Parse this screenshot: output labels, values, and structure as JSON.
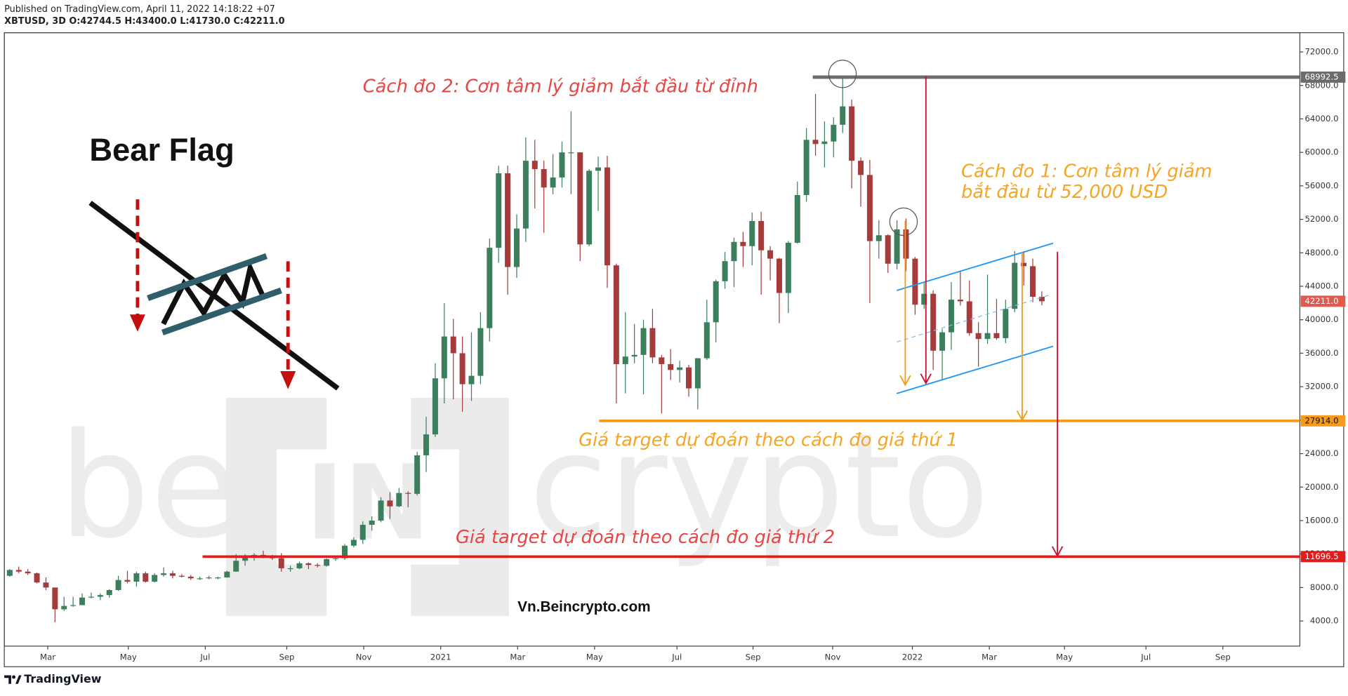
{
  "header": {
    "published": "Published on TradingView.com, April 11, 2022 14:18:22 +07",
    "symbol_line": "XBTUSD, 3D O:42744.5 H:43400.0 L:41730.0 C:42211.0"
  },
  "chart_data": {
    "type": "candlestick",
    "series": [
      {
        "name": "XBTUSD",
        "up_color": "#3b7f5c",
        "down_color": "#a63b3b",
        "last_price_label": "42211.0",
        "last_price_color": "#e05a4f",
        "ohlc": [
          [
            9400,
            10200,
            9300,
            10100
          ],
          [
            10100,
            10500,
            9700,
            9900
          ],
          [
            9900,
            10200,
            9500,
            9700
          ],
          [
            9700,
            9800,
            8500,
            8600
          ],
          [
            8600,
            9200,
            7700,
            8000
          ],
          [
            8000,
            8000,
            3850,
            5400
          ],
          [
            5400,
            6900,
            5200,
            5800
          ],
          [
            5800,
            6900,
            5700,
            5900
          ],
          [
            5900,
            7300,
            5900,
            6800
          ],
          [
            6800,
            7400,
            6700,
            6900
          ],
          [
            6900,
            7300,
            6500,
            7100
          ],
          [
            7100,
            7800,
            6800,
            7700
          ],
          [
            7700,
            9400,
            7600,
            8900
          ],
          [
            8900,
            10000,
            8500,
            8700
          ],
          [
            8700,
            9900,
            8100,
            9700
          ],
          [
            9700,
            9900,
            8600,
            8700
          ],
          [
            8700,
            9700,
            8600,
            9500
          ],
          [
            9500,
            10400,
            9300,
            9700
          ],
          [
            9700,
            10000,
            9100,
            9400
          ],
          [
            9400,
            9600,
            9200,
            9300
          ],
          [
            9300,
            9500,
            8900,
            9100
          ],
          [
            9100,
            9300,
            8900,
            9100
          ],
          [
            9100,
            9400,
            9000,
            9200
          ],
          [
            9200,
            9300,
            9000,
            9200
          ],
          [
            9200,
            10000,
            9200,
            9900
          ],
          [
            9900,
            12000,
            9900,
            11200
          ],
          [
            11200,
            12000,
            10600,
            11700
          ],
          [
            11700,
            12100,
            11200,
            11900
          ],
          [
            11900,
            12400,
            11500,
            11700
          ],
          [
            11700,
            11900,
            11300,
            11500
          ],
          [
            11500,
            12100,
            9900,
            10300
          ],
          [
            10300,
            10600,
            9900,
            10300
          ],
          [
            10300,
            11100,
            10200,
            10900
          ],
          [
            10900,
            11000,
            10200,
            10700
          ],
          [
            10700,
            10900,
            10400,
            10600
          ],
          [
            10600,
            11500,
            10500,
            11400
          ],
          [
            11400,
            11700,
            11200,
            11500
          ],
          [
            11500,
            13200,
            11300,
            13000
          ],
          [
            13000,
            14000,
            12800,
            13700
          ],
          [
            13700,
            15900,
            13200,
            15500
          ],
          [
            15500,
            16500,
            14800,
            16000
          ],
          [
            16000,
            18800,
            15800,
            18400
          ],
          [
            18400,
            19400,
            16200,
            17700
          ],
          [
            17700,
            19900,
            17600,
            19300
          ],
          [
            19300,
            19500,
            17600,
            19200
          ],
          [
            19200,
            24200,
            19000,
            23800
          ],
          [
            23800,
            28400,
            21800,
            26300
          ],
          [
            26300,
            34800,
            26000,
            33000
          ],
          [
            33000,
            42000,
            30000,
            38000
          ],
          [
            38000,
            40100,
            30500,
            36000
          ],
          [
            36000,
            38000,
            29000,
            32300
          ],
          [
            32300,
            38500,
            30300,
            33300
          ],
          [
            33300,
            40900,
            32300,
            39000
          ],
          [
            39000,
            49700,
            37400,
            48600
          ],
          [
            48600,
            58400,
            46800,
            57500
          ],
          [
            57500,
            58400,
            43000,
            46300
          ],
          [
            46300,
            52600,
            45000,
            50900
          ],
          [
            50900,
            61800,
            49300,
            59000
          ],
          [
            59000,
            61500,
            53300,
            58000
          ],
          [
            58000,
            59000,
            50400,
            55800
          ],
          [
            55800,
            59800,
            55000,
            57000
          ],
          [
            57000,
            61300,
            55800,
            60000
          ],
          [
            60000,
            64900,
            55000,
            60000
          ],
          [
            60000,
            60000,
            47000,
            49000
          ],
          [
            49000,
            58000,
            48800,
            57800
          ],
          [
            57800,
            59500,
            53000,
            58200
          ],
          [
            58200,
            59600,
            43800,
            46500
          ],
          [
            46500,
            46700,
            30000,
            34700
          ],
          [
            34700,
            40900,
            31200,
            35600
          ],
          [
            35600,
            39500,
            34800,
            35800
          ],
          [
            35800,
            40000,
            31100,
            39000
          ],
          [
            39000,
            41300,
            34800,
            35500
          ],
          [
            35500,
            35800,
            28800,
            34700
          ],
          [
            34700,
            36500,
            32800,
            34000
          ],
          [
            34000,
            35100,
            32500,
            34300
          ],
          [
            34300,
            34600,
            30800,
            31800
          ],
          [
            31800,
            35400,
            29300,
            35400
          ],
          [
            35400,
            42400,
            35200,
            39700
          ],
          [
            39700,
            44800,
            37300,
            44600
          ],
          [
            44600,
            48100,
            43700,
            47000
          ],
          [
            47000,
            49800,
            43900,
            49300
          ],
          [
            49300,
            50500,
            46300,
            48800
          ],
          [
            48800,
            52800,
            46500,
            51800
          ],
          [
            51800,
            52900,
            43000,
            48300
          ],
          [
            48300,
            48800,
            44700,
            47300
          ],
          [
            47300,
            47400,
            39600,
            43200
          ],
          [
            43200,
            49400,
            40800,
            49200
          ],
          [
            49200,
            56500,
            49100,
            54900
          ],
          [
            54900,
            62900,
            54100,
            61500
          ],
          [
            61500,
            67000,
            59600,
            61000
          ],
          [
            61000,
            63700,
            58200,
            61300
          ],
          [
            61300,
            64200,
            59400,
            63300
          ],
          [
            63300,
            68992.5,
            62300,
            65500
          ],
          [
            65500,
            66300,
            55700,
            59000
          ],
          [
            59000,
            59400,
            53500,
            57300
          ],
          [
            57300,
            59100,
            42000,
            49400
          ],
          [
            49400,
            51900,
            47300,
            50100
          ],
          [
            50100,
            50200,
            45600,
            46700
          ],
          [
            46700,
            51900,
            46000,
            50800
          ],
          [
            50800,
            52100,
            45800,
            47300
          ],
          [
            47300,
            47500,
            40600,
            41800
          ],
          [
            41800,
            44400,
            41300,
            43100
          ],
          [
            43100,
            43500,
            34000,
            36300
          ],
          [
            36300,
            38900,
            32900,
            38500
          ],
          [
            38500,
            44500,
            36400,
            42400
          ],
          [
            42400,
            45800,
            41700,
            42200
          ],
          [
            42200,
            44700,
            38100,
            38400
          ],
          [
            38400,
            39700,
            34400,
            37700
          ],
          [
            37700,
            45400,
            37100,
            38400
          ],
          [
            38400,
            42500,
            37600,
            37800
          ],
          [
            37800,
            42400,
            37200,
            41300
          ],
          [
            41300,
            48200,
            40900,
            46800
          ],
          [
            46800,
            48200,
            44100,
            46400
          ],
          [
            46400,
            47300,
            42100,
            42744.5
          ],
          [
            42744.5,
            43400,
            41730,
            42211
          ]
        ]
      }
    ],
    "xlim": [
      -0.6,
      142.5
    ],
    "xticks": [
      {
        "value": 4.2,
        "label": "Mar"
      },
      {
        "value": 13.1,
        "label": "May"
      },
      {
        "value": 21.6,
        "label": "Jul"
      },
      {
        "value": 30.6,
        "label": "Sep"
      },
      {
        "value": 39.1,
        "label": "Nov"
      },
      {
        "value": 47.6,
        "label": "2021"
      },
      {
        "value": 56.1,
        "label": "Mar"
      },
      {
        "value": 64.6,
        "label": "May"
      },
      {
        "value": 73.7,
        "label": "Jul"
      },
      {
        "value": 82.1,
        "label": "Sep"
      },
      {
        "value": 90.9,
        "label": "Nov"
      },
      {
        "value": 99.7,
        "label": "2022"
      },
      {
        "value": 108.2,
        "label": "Mar"
      },
      {
        "value": 116.5,
        "label": "May"
      },
      {
        "value": 125.5,
        "label": "Jul"
      },
      {
        "value": 134.0,
        "label": "Sep"
      }
    ],
    "ylim": [
      1000,
      74300
    ],
    "yticks": [
      {
        "value": 4000,
        "label": "4000.0"
      },
      {
        "value": 8000,
        "label": "8000.0"
      },
      {
        "value": 12000,
        "label": "12000.0"
      },
      {
        "value": 16000,
        "label": "16000.0"
      },
      {
        "value": 20000,
        "label": "20000.0"
      },
      {
        "value": 24000,
        "label": "24000.0"
      },
      {
        "value": 28000,
        "label": "28000.0"
      },
      {
        "value": 32000,
        "label": "32000.0"
      },
      {
        "value": 36000,
        "label": "36000.0"
      },
      {
        "value": 40000,
        "label": "40000.0"
      },
      {
        "value": 44000,
        "label": "44000.0"
      },
      {
        "value": 48000,
        "label": "48000.0"
      },
      {
        "value": 52000,
        "label": "52000.0"
      },
      {
        "value": 56000,
        "label": "56000.0"
      },
      {
        "value": 60000,
        "label": "60000.0"
      },
      {
        "value": 64000,
        "label": "64000.0"
      },
      {
        "value": 68000,
        "label": "68000.0"
      },
      {
        "value": 72000,
        "label": "72000.0"
      }
    ],
    "grid": false,
    "price_lines": [
      {
        "price": 68992.5,
        "from_x": 88.7,
        "color": "#6b6b6b",
        "width": 4
      },
      {
        "price": 27914,
        "price_label": "27914.0",
        "from_x": 65.1,
        "color": "#f59a1b",
        "width": 3
      },
      {
        "price": 11696.5,
        "from_x": 21.3,
        "color": "#e31b1b",
        "width": 3
      }
    ],
    "annotations": {
      "method_2": "Cách đo 2: Cơn tâm lý giảm bắt đầu từ đỉnh",
      "method_1_line1": "Cách đo 1: Cơn tâm lý giảm",
      "method_1_line2": "bắt đầu từ 52,000 USD",
      "target_1": "Giá target dự đoán theo cách đo giá thứ 1",
      "target_2": "Giá target dự đoán theo cách đo giá thứ 2"
    }
  },
  "overlay": {
    "pattern": "Bear Flag",
    "site": "Vn.Beincrypto.com"
  },
  "watermark": {
    "left": "be",
    "mark": "IN",
    "right": "crypto"
  },
  "footer": {
    "brand": "TradingView"
  }
}
